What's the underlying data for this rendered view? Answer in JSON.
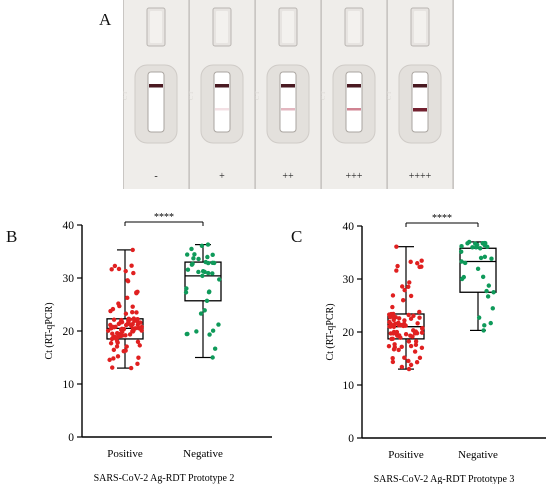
{
  "panel_letters": {
    "a": "A",
    "b": "B",
    "c": "C"
  },
  "photo": {
    "labels": [
      "-",
      "+",
      "++",
      "+++",
      "++++"
    ],
    "test_line_intensity": [
      0,
      0.15,
      0.35,
      0.6,
      0.95
    ],
    "colors": {
      "background": "#c9c6c3",
      "cassette": "#efedea",
      "control_line": "#4a1a22",
      "test_line": "#b0304a"
    }
  },
  "chart_data": [
    {
      "type": "boxplot",
      "title": "",
      "xlabel": "SARS-CoV-2 Ag-RDT Prototype 2",
      "ylabel": "Ct (RT-qPCR)",
      "ylim": [
        0,
        40
      ],
      "yticks": [
        "0",
        "10",
        "20",
        "30",
        "40"
      ],
      "categories": [
        "Positive",
        "Negative"
      ],
      "significance": "****",
      "series": [
        {
          "box": {
            "min": 13.0,
            "q1": 18.5,
            "median": 20.5,
            "q3": 22.3,
            "max": 35.3
          },
          "color": "#e02020",
          "n_points": 95
        },
        {
          "box": {
            "min": 15.0,
            "q1": 25.7,
            "median": 30.4,
            "q3": 33.0,
            "max": 36.3
          },
          "color": "#0f9a5a",
          "n_points": 38
        }
      ]
    },
    {
      "type": "boxplot",
      "title": "",
      "xlabel": "SARS-CoV-2 Ag-RDT Prototype 3",
      "ylabel": "Ct (RT-qPCR)",
      "ylim": [
        0,
        40
      ],
      "yticks": [
        "0",
        "10",
        "20",
        "30",
        "40"
      ],
      "categories": [
        "Positive",
        "Negative"
      ],
      "significance": "****",
      "series": [
        {
          "box": {
            "min": 13.0,
            "q1": 18.7,
            "median": 21.0,
            "q3": 23.4,
            "max": 36.1
          },
          "color": "#e02020",
          "n_points": 90
        },
        {
          "box": {
            "min": 20.3,
            "q1": 27.5,
            "median": 33.3,
            "q3": 35.8,
            "max": 37.0
          },
          "color": "#0f9a5a",
          "n_points": 32
        }
      ]
    }
  ]
}
